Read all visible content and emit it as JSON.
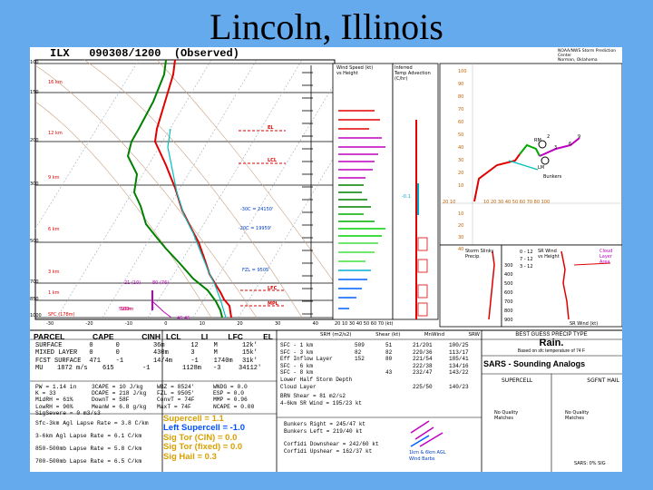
{
  "title": "Lincoln, Illinois",
  "header": {
    "station": "ILX",
    "datetime": "090308/1200",
    "type": "(Observed)"
  },
  "spc_credit": [
    "NOAA/NWS Storm Prediction Center",
    "Norman, Oklahoma"
  ],
  "skewt": {
    "pressure_labels": [
      "100",
      "150",
      "200",
      "300",
      "500",
      "700",
      "850",
      "1000"
    ],
    "height_labels": [
      "16 km",
      "12 km",
      "9 km",
      "6 km",
      "3 km",
      "1 km",
      "500m",
      "SFC (178m)"
    ],
    "temp_ticks": [
      "-30",
      "-20",
      "-10",
      "0",
      "10",
      "20",
      "30",
      "40"
    ],
    "levels": [
      "EL",
      "LCL",
      "LFC",
      "MPL",
      "FZL = 9505'",
      "-20C = 19959'",
      "-30C = 24150'",
      "ESRH",
      "80 (76)",
      "46,46"
    ],
    "left_notes": [
      "21 (10)",
      "520m"
    ],
    "bottom_note": "20 10 30 40 50 60 70 (kt)"
  },
  "side_panels": {
    "wind_speed": [
      "Wind Speed (kt)",
      "vs Height"
    ],
    "inferred_temp": [
      "Inferred",
      "Temp Advection",
      "(C/hr)"
    ],
    "theta": [
      "-0.1"
    ]
  },
  "hodograph": {
    "y_labels": [
      "100",
      "90",
      "80",
      "70",
      "60",
      "50",
      "40",
      "30",
      "20",
      "10",
      "10",
      "20",
      "30",
      "40"
    ],
    "x_labels": [
      "20 10",
      "10 20 30 40 50 60 70 80 100"
    ],
    "markers": [
      "2",
      "3",
      "6",
      "9",
      "RM",
      "LM",
      "Bunkers"
    ]
  },
  "storm_slinky": {
    "label": [
      "Storm Slinky",
      "Precip."
    ],
    "units": [
      "0 - 12",
      "7 - 12",
      "3 - 12"
    ]
  },
  "sr_winds": {
    "label": [
      "SR Wind",
      "vs Height"
    ],
    "ticks": [
      "300",
      "400",
      "500",
      "600",
      "700",
      "800",
      "900"
    ],
    "legend": [
      "Cloud",
      "Layer",
      "Area"
    ]
  },
  "storm_motion_label": "SR Wind (kt)",
  "parcel_table": {
    "headers": [
      "PARCEL",
      "CAPE",
      "CINH",
      "LCL",
      "LI",
      "LFC",
      "EL"
    ],
    "rows": [
      [
        "SURFACE",
        "0",
        "0",
        "36m",
        "12",
        "M",
        "12k'"
      ],
      [
        "MIXED LAYER",
        "0",
        "0",
        "430m",
        "3",
        "M",
        "15k'"
      ],
      [
        "FCST SURFACE",
        "471",
        "-1",
        "14/4m",
        "-1",
        "1740m",
        "31k'"
      ],
      [
        "MU",
        "1872 m/s",
        "615",
        "-1",
        "1128m",
        "-3",
        "34112'"
      ]
    ]
  },
  "kinematics": {
    "headers": [
      "SRH (m2/s2)",
      "Shear (kt)",
      "MnWind",
      "SRW"
    ],
    "rows": [
      [
        "SFC - 1 km",
        "509",
        "51",
        "21/201",
        "100/25"
      ],
      [
        "SFC - 3 km",
        "82",
        "82",
        "229/36",
        "113/17"
      ],
      [
        "Eff Inflow Layer",
        "152",
        "80",
        "221/54",
        "185/41"
      ],
      [
        "SFC - 6 km",
        "",
        "",
        "222/38",
        "134/16"
      ],
      [
        "SFC - 8 km",
        "",
        "43",
        "232/47",
        "143/22"
      ],
      [
        "Lower Half Storm Depth",
        "",
        "",
        "",
        ""
      ],
      [
        "Cloud Layer",
        "",
        "",
        "225/50",
        "140/23"
      ]
    ],
    "extra": [
      "BRN Shear = 81 m2/s2",
      "4-6km SR Wind = 195/23 kt"
    ]
  },
  "indices": {
    "rows": [
      [
        "PW = 1.14 in",
        "3CAPE = 10 J/kg",
        "WBZ = 8524'",
        "WNDG = 0.0"
      ],
      [
        "K = 33",
        "DCAPE = 218 J/kg",
        "FZL = 9505'",
        "ESP = 0.0"
      ],
      [
        "MidRH = 61%",
        "DownT = 58F",
        "ConvT = 74F",
        "MMP = 0.96"
      ],
      [
        "LowRH = 96%",
        "MeanW = 6.8 g/kg",
        "MaxT = 74F",
        "NCAPE = 0.00"
      ],
      [
        "SigSevere = 0 m3/s3",
        "",
        "",
        ""
      ]
    ],
    "lapse": [
      [
        "Sfc-3km Agl Lapse Rate = 3.8 C/km"
      ],
      [
        "3-6km Agl Lapse Rate = 6.1 C/km"
      ],
      [
        "850-500mb Lapse Rate = 5.8 C/km"
      ],
      [
        "700-500mb Lapse Rate = 6.5 C/km"
      ]
    ]
  },
  "composite": [
    {
      "label": "Supercell = 1.1",
      "color": "#d8a000"
    },
    {
      "label": "Left Supercell = -1.0",
      "color": "#0050ff"
    },
    {
      "label": "Sig Tor (CIN) = 0.0",
      "color": "#d8a000"
    },
    {
      "label": "Sig Tor (fixed) = 0.0",
      "color": "#d8a000"
    },
    {
      "label": "Sig Hail = 0.3",
      "color": "#d8a000"
    }
  ],
  "storm_motion": {
    "bunkers_right": "Bunkers Right = 245/47 kt",
    "bunkers_left": "Bunkers Left = 219/40 kt",
    "corfidi_down": "Corfidi Downshear = 242/60 kt",
    "corfidi_up": "Corfidi Upshear = 162/37 kt",
    "legend": [
      "1km & 6km AGL",
      "Wind Barbs"
    ]
  },
  "precip": {
    "title": "BEST GUESS PRECIP TYPE",
    "type": "Rain.",
    "note": "Based on sfc temperature of 74 F"
  },
  "sars": {
    "title": "SARS - Sounding Analogs",
    "cols": [
      "SUPERCELL",
      "SGFNT HAIL"
    ],
    "supercell_text": [
      "No Quality",
      "Matches"
    ],
    "hail_text": [
      "No Quality",
      "Matches"
    ],
    "sarshail": "SARS: 0% SIG"
  },
  "colors": {
    "background": "#66aaee",
    "temp": "#e00000",
    "dewpoint": "#008000",
    "wetbulb": "#00c0c0",
    "parcel": "#c000c0",
    "grid": "#8aa8c0"
  }
}
